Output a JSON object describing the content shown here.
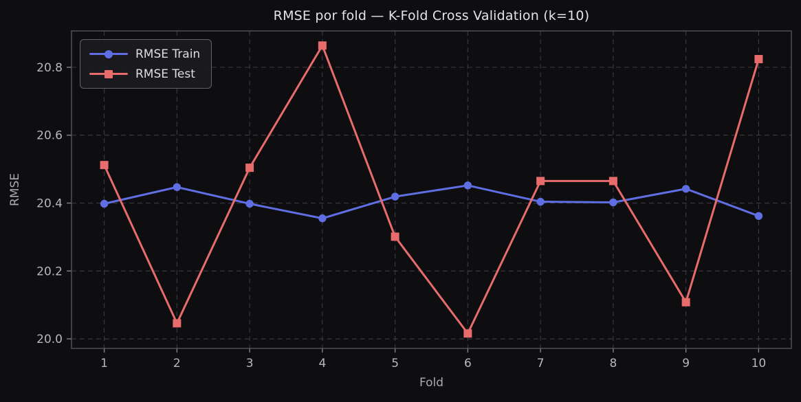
{
  "chart_data": {
    "type": "line",
    "title": "RMSE por fold — K-Fold Cross Validation (k=10)",
    "xlabel": "Fold",
    "ylabel": "RMSE",
    "x": [
      1,
      2,
      3,
      4,
      5,
      6,
      7,
      8,
      9,
      10
    ],
    "series": [
      {
        "name": "RMSE Train",
        "color": "#5f6fe3",
        "marker": "circle",
        "values": [
          20.398,
          20.447,
          20.398,
          20.355,
          20.419,
          20.452,
          20.404,
          20.402,
          20.442,
          20.362
        ]
      },
      {
        "name": "RMSE Test",
        "color": "#e86c6c",
        "marker": "square",
        "values": [
          20.512,
          20.046,
          20.504,
          20.864,
          20.301,
          20.016,
          20.465,
          20.465,
          20.108,
          20.824
        ]
      }
    ],
    "xticks": [
      1,
      2,
      3,
      4,
      5,
      6,
      7,
      8,
      9,
      10
    ],
    "yticks": [
      20.0,
      20.2,
      20.4,
      20.6,
      20.8
    ],
    "xlim": [
      0.55,
      10.45
    ],
    "ylim": [
      19.972,
      20.907
    ],
    "grid": true,
    "legend_position": "upper left"
  },
  "colors": {
    "background": "#0e0e11",
    "grid": "#3b3b41",
    "spine": "#54545c",
    "tick_mark": "#8a8a92",
    "tick_text": "#b6b6be",
    "title_text": "#e4e4e8",
    "axis_label_text": "#a9a9b2",
    "legend_bg": "#1b1b1f",
    "legend_border": "#62626a",
    "legend_text": "#dededf"
  }
}
